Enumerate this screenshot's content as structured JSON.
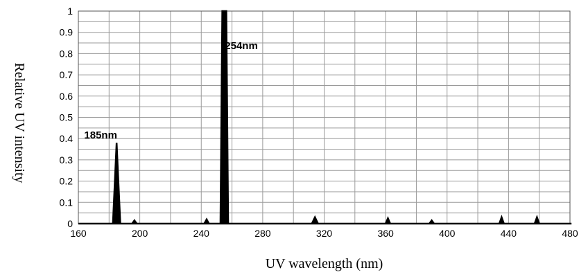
{
  "chart_data": {
    "type": "line",
    "title": "",
    "xlabel": "UV wavelength (nm)",
    "ylabel": "Relative UV intensity",
    "xlim": [
      160,
      480
    ],
    "ylim": [
      0,
      1
    ],
    "x_ticks": [
      "160",
      "200",
      "240",
      "280",
      "320",
      "360",
      "400",
      "440",
      "480"
    ],
    "y_ticks": [
      "0",
      "0.1",
      "0.2",
      "0.3",
      "0.4",
      "0.5",
      "0.6",
      "0.7",
      "0.8",
      "0.9",
      "1"
    ],
    "grid": true,
    "line_color": "#000000",
    "series": [
      {
        "x": [
          160,
          182.5,
          184.9,
          187.3,
          195,
          196.5,
          198,
          242,
          243.5,
          245,
          252.5,
          253.7,
          256.3,
          257.5,
          312,
          314,
          316,
          360,
          361.5,
          363,
          388.5,
          390,
          391.5,
          434,
          435.5,
          437,
          457,
          458.5,
          460,
          481
        ],
        "y": [
          0,
          0,
          0.38,
          0,
          0,
          0.015,
          0,
          0,
          0.02,
          0,
          0,
          1.0,
          1.0,
          0,
          0,
          0.03,
          0,
          0,
          0.025,
          0,
          0,
          0.015,
          0,
          0,
          0.03,
          0,
          0,
          0.03,
          0,
          0
        ]
      }
    ],
    "annotations": [
      {
        "text": "185nm",
        "x": 185,
        "y": 0.42
      },
      {
        "text": "254nm",
        "x": 254,
        "y": 0.84
      }
    ]
  }
}
